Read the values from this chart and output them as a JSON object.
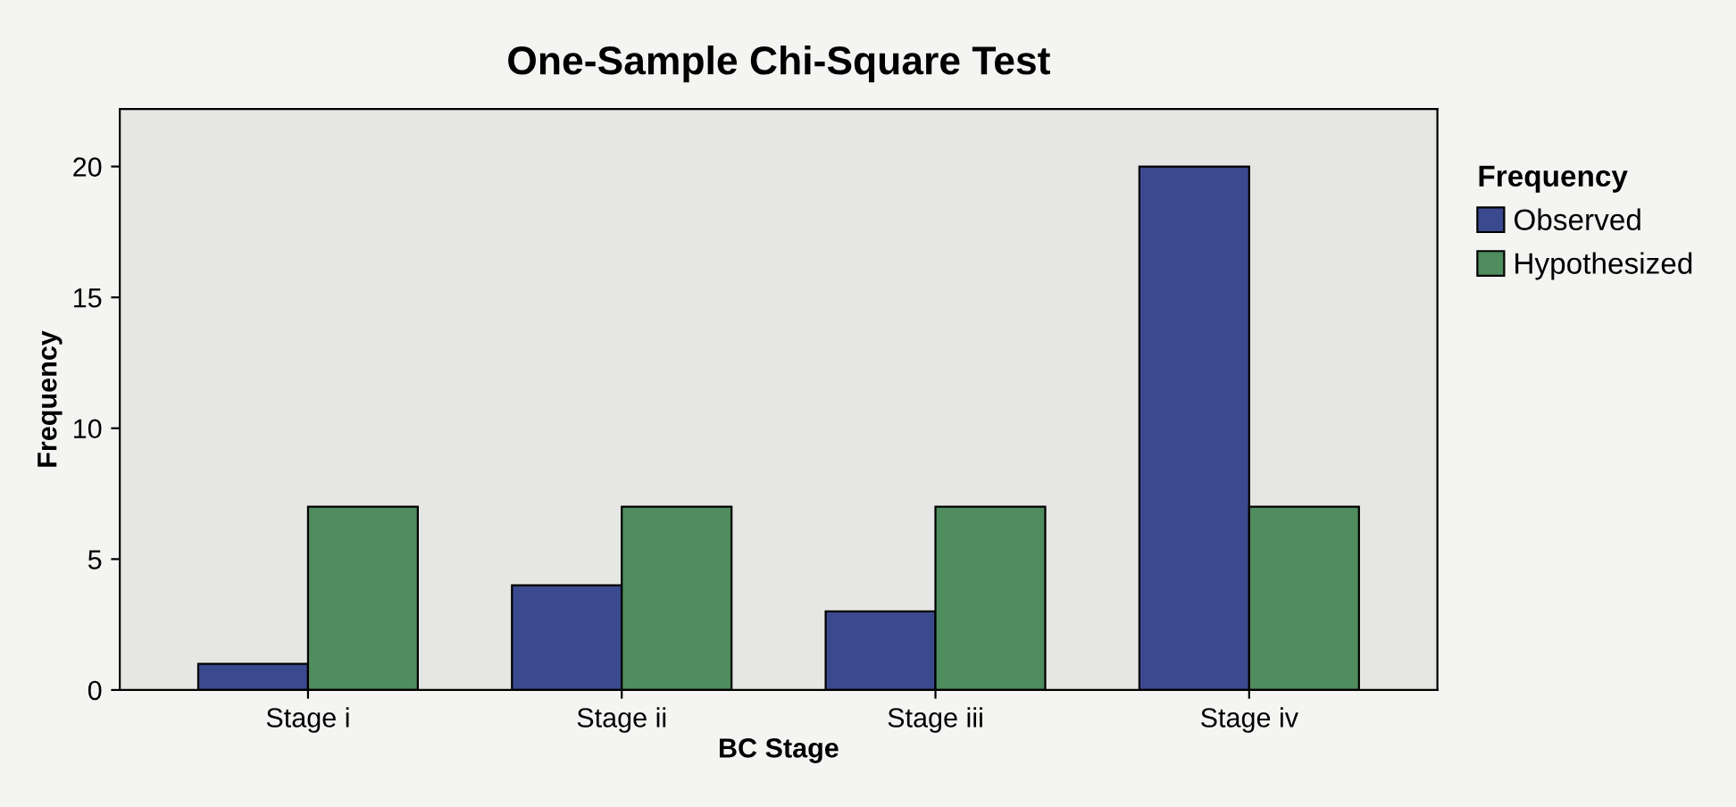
{
  "chart_data": {
    "type": "bar",
    "title": "One-Sample Chi-Square Test",
    "xlabel": "BC Stage",
    "ylabel": "Frequency",
    "legend_title": "Frequency",
    "categories": [
      "Stage i",
      "Stage ii",
      "Stage iii",
      "Stage iv"
    ],
    "series": [
      {
        "name": "Observed",
        "color": "#3b4a8e",
        "values": [
          1,
          4,
          3,
          20
        ]
      },
      {
        "name": "Hypothesized",
        "color": "#4f8c5e",
        "values": [
          7,
          7,
          7,
          7
        ]
      }
    ],
    "ylim": [
      0,
      22.2
    ],
    "yticks": [
      0,
      5,
      10,
      15,
      20
    ],
    "grid": false,
    "legend": "right"
  }
}
